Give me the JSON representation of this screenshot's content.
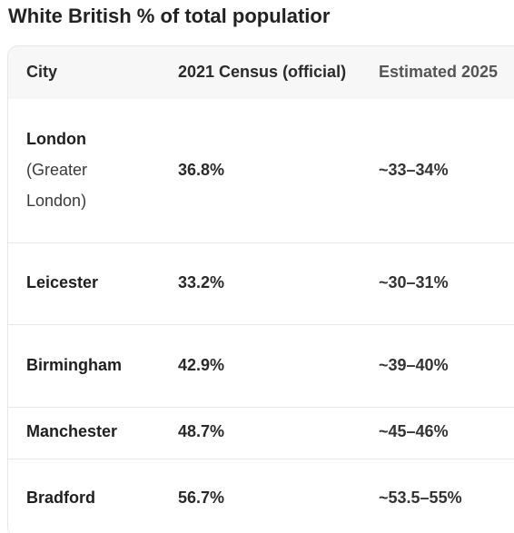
{
  "title": "White British % of total populatior",
  "table": {
    "headers": {
      "city": "City",
      "census": "2021 Census (official)",
      "estimate": "Estimated 2025"
    },
    "rows": [
      {
        "city": "London",
        "city_detail_1": "(Greater",
        "city_detail_2": "London)",
        "census": "36.8%",
        "estimate": "~33–34%"
      },
      {
        "city": "Leicester",
        "census": "33.2%",
        "estimate": "~30–31%"
      },
      {
        "city": "Birmingham",
        "census": "42.9%",
        "estimate": "~39–40%"
      },
      {
        "city": "Manchester",
        "census": "48.7%",
        "estimate": "~45–46%"
      },
      {
        "city": "Bradford",
        "census": "56.7%",
        "estimate": "~53.5–55%"
      }
    ]
  }
}
